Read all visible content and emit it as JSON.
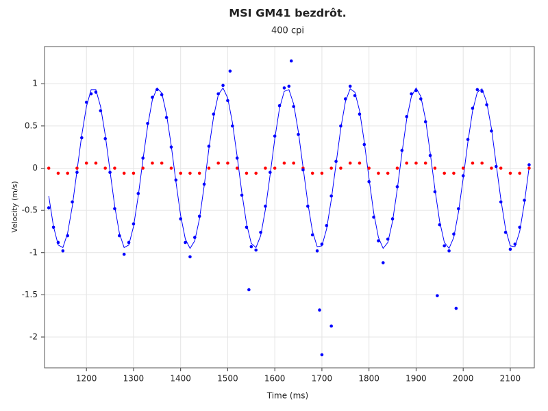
{
  "chart_data": {
    "type": "scatter",
    "title": "MSI GM41 bezdrôt.",
    "subtitle": "400 cpi",
    "xlabel": "Time (ms)",
    "ylabel": "Velocity (m/s)",
    "xlim": [
      1111,
      2151
    ],
    "ylim": [
      -2.365,
      1.44
    ],
    "xticks": [
      1200,
      1300,
      1400,
      1500,
      1600,
      1700,
      1800,
      1900,
      2000,
      2100
    ],
    "yticks": [
      -2,
      -1.5,
      -1,
      -0.5,
      0,
      0.5,
      1
    ],
    "grid": true,
    "series": [
      {
        "type": "scatter",
        "color": "#0000ff",
        "x": [
          1120,
          1130,
          1140,
          1150,
          1160,
          1170,
          1180,
          1190,
          1200,
          1210,
          1220,
          1230,
          1240,
          1250,
          1260,
          1270,
          1280,
          1290,
          1300,
          1310,
          1320,
          1330,
          1340,
          1350,
          1360,
          1370,
          1380,
          1390,
          1400,
          1410,
          1420,
          1430,
          1440,
          1450,
          1460,
          1470,
          1480,
          1490,
          1500,
          1510,
          1520,
          1530,
          1540,
          1550,
          1560,
          1570,
          1580,
          1590,
          1600,
          1610,
          1620,
          1630,
          1640,
          1650,
          1660,
          1670,
          1680,
          1690,
          1700,
          1710,
          1720,
          1730,
          1740,
          1750,
          1760,
          1770,
          1780,
          1790,
          1800,
          1810,
          1820,
          1830,
          1840,
          1850,
          1860,
          1870,
          1880,
          1890,
          1900,
          1910,
          1920,
          1930,
          1940,
          1950,
          1960,
          1970,
          1980,
          1990,
          2000,
          2010,
          2020,
          2030,
          2040,
          2050,
          2060,
          2070,
          2080,
          2090,
          2100,
          2110,
          2120,
          2130,
          2140,
          1505,
          1545,
          1635,
          1695,
          1700,
          1720,
          1945,
          1985
        ],
        "values": [
          -0.47,
          -0.7,
          -0.88,
          -0.98,
          -0.8,
          -0.4,
          -0.05,
          0.36,
          0.78,
          0.88,
          0.9,
          0.68,
          0.35,
          -0.05,
          -0.48,
          -0.8,
          -1.02,
          -0.88,
          -0.66,
          -0.3,
          0.12,
          0.53,
          0.84,
          0.93,
          0.87,
          0.6,
          0.25,
          -0.14,
          -0.6,
          -0.88,
          -1.05,
          -0.82,
          -0.57,
          -0.19,
          0.26,
          0.64,
          0.88,
          0.98,
          0.8,
          0.5,
          0.12,
          -0.32,
          -0.7,
          -0.93,
          -0.97,
          -0.76,
          -0.45,
          -0.05,
          0.38,
          0.74,
          0.95,
          0.97,
          0.73,
          0.4,
          -0.02,
          -0.45,
          -0.79,
          -0.98,
          -0.9,
          -0.68,
          -0.33,
          0.08,
          0.5,
          0.82,
          0.97,
          0.86,
          0.64,
          0.28,
          -0.16,
          -0.58,
          -0.86,
          -1.12,
          -0.84,
          -0.6,
          -0.22,
          0.21,
          0.61,
          0.88,
          0.92,
          0.82,
          0.55,
          0.15,
          -0.28,
          -0.67,
          -0.92,
          -0.98,
          -0.78,
          -0.48,
          -0.09,
          0.34,
          0.71,
          0.93,
          0.91,
          0.75,
          0.44,
          0.02,
          -0.4,
          -0.76,
          -0.96,
          -0.9,
          -0.7,
          -0.38,
          0.04,
          1.15,
          -1.44,
          1.27,
          -1.68,
          -2.21,
          -1.87,
          -1.51,
          -1.66
        ]
      },
      {
        "type": "scatter",
        "color": "#ff0000",
        "x": [
          1120,
          1140,
          1160,
          1180,
          1200,
          1220,
          1240,
          1260,
          1280,
          1300,
          1320,
          1340,
          1360,
          1380,
          1400,
          1420,
          1440,
          1460,
          1480,
          1500,
          1520,
          1540,
          1560,
          1580,
          1600,
          1620,
          1640,
          1660,
          1680,
          1700,
          1720,
          1740,
          1760,
          1780,
          1800,
          1820,
          1840,
          1860,
          1880,
          1900,
          1920,
          1940,
          1960,
          1980,
          2000,
          2020,
          2040,
          2060,
          2080,
          2100,
          2120,
          2140
        ],
        "values": [
          0,
          -0.06,
          -0.06,
          0,
          0.06,
          0.06,
          0,
          0,
          -0.06,
          -0.06,
          0,
          0.06,
          0.06,
          0,
          -0.06,
          -0.06,
          -0.06,
          0,
          0.06,
          0.06,
          0,
          -0.06,
          -0.06,
          0,
          0,
          0.06,
          0.06,
          0,
          -0.06,
          -0.06,
          0,
          0,
          0.06,
          0.06,
          0,
          -0.06,
          -0.06,
          0,
          0.06,
          0.06,
          0.06,
          0,
          -0.06,
          -0.06,
          0,
          0.06,
          0.06,
          0,
          0,
          -0.06,
          -0.06,
          0
        ]
      },
      {
        "type": "line",
        "color": "#0000ff",
        "x": [
          1120,
          1130,
          1140,
          1150,
          1160,
          1170,
          1180,
          1190,
          1200,
          1210,
          1220,
          1230,
          1240,
          1250,
          1260,
          1270,
          1280,
          1290,
          1300,
          1310,
          1320,
          1330,
          1340,
          1350,
          1360,
          1370,
          1380,
          1390,
          1400,
          1410,
          1420,
          1430,
          1440,
          1450,
          1460,
          1470,
          1480,
          1490,
          1500,
          1510,
          1520,
          1530,
          1540,
          1550,
          1560,
          1570,
          1580,
          1590,
          1600,
          1610,
          1620,
          1630,
          1640,
          1650,
          1660,
          1670,
          1680,
          1690,
          1700,
          1710,
          1720,
          1730,
          1740,
          1750,
          1760,
          1770,
          1780,
          1790,
          1800,
          1810,
          1820,
          1830,
          1840,
          1850,
          1860,
          1870,
          1880,
          1890,
          1900,
          1910,
          1920,
          1930,
          1940,
          1950,
          1960,
          1970,
          1980,
          1990,
          2000,
          2010,
          2020,
          2030,
          2040,
          2050,
          2060,
          2070,
          2080,
          2090,
          2100,
          2110,
          2120,
          2130,
          2140
        ],
        "values": [
          -0.33,
          -0.69,
          -0.91,
          -0.94,
          -0.77,
          -0.45,
          -0.03,
          0.39,
          0.73,
          0.93,
          0.93,
          0.73,
          0.39,
          -0.03,
          -0.45,
          -0.77,
          -0.94,
          -0.91,
          -0.69,
          -0.33,
          0.1,
          0.5,
          0.81,
          0.95,
          0.89,
          0.64,
          0.27,
          -0.16,
          -0.56,
          -0.84,
          -0.95,
          -0.86,
          -0.6,
          -0.21,
          0.23,
          0.61,
          0.87,
          0.95,
          0.83,
          0.54,
          0.14,
          -0.29,
          -0.66,
          -0.89,
          -0.94,
          -0.8,
          -0.49,
          -0.08,
          0.35,
          0.71,
          0.91,
          0.93,
          0.76,
          0.43,
          0.01,
          -0.41,
          -0.75,
          -0.93,
          -0.92,
          -0.72,
          -0.37,
          0.05,
          0.47,
          0.79,
          0.94,
          0.9,
          0.68,
          0.31,
          -0.12,
          -0.53,
          -0.82,
          -0.95,
          -0.88,
          -0.63,
          -0.25,
          0.18,
          0.58,
          0.85,
          0.95,
          0.85,
          0.58,
          0.18,
          -0.25,
          -0.63,
          -0.88,
          -0.95,
          -0.82,
          -0.52,
          -0.12,
          0.31,
          0.68,
          0.9,
          0.94,
          0.78,
          0.47,
          0.05,
          -0.37,
          -0.72,
          -0.92,
          -0.93,
          -0.75,
          -0.41,
          0.01
        ]
      }
    ]
  }
}
